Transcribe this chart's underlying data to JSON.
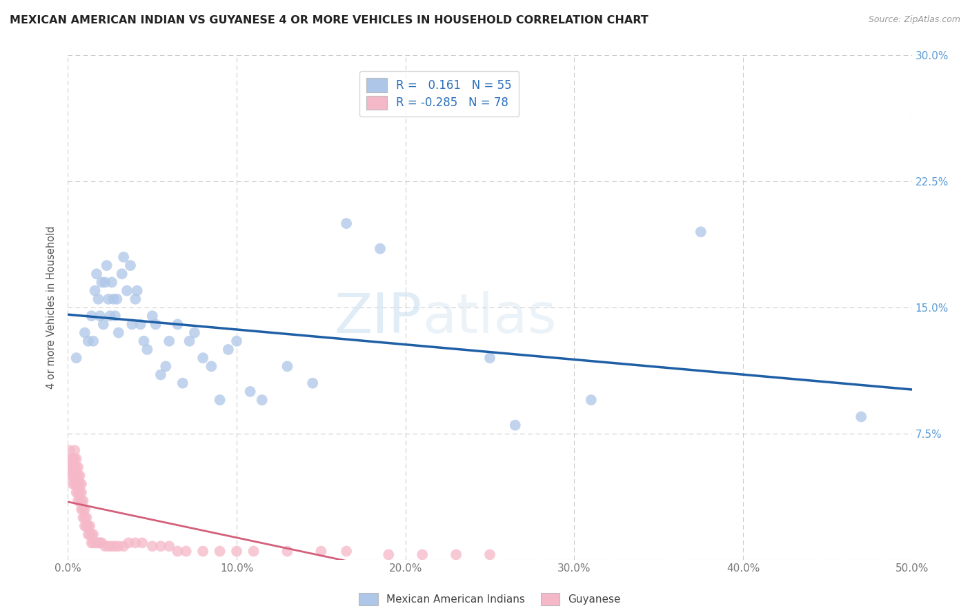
{
  "title": "MEXICAN AMERICAN INDIAN VS GUYANESE 4 OR MORE VEHICLES IN HOUSEHOLD CORRELATION CHART",
  "source": "Source: ZipAtlas.com",
  "ylabel": "4 or more Vehicles in Household",
  "x_min": 0.0,
  "x_max": 0.5,
  "y_min": 0.0,
  "y_max": 0.3,
  "x_ticks": [
    0.0,
    0.1,
    0.2,
    0.3,
    0.4,
    0.5
  ],
  "x_tick_labels": [
    "0.0%",
    "10.0%",
    "20.0%",
    "30.0%",
    "40.0%",
    "50.0%"
  ],
  "y_ticks": [
    0.0,
    0.075,
    0.15,
    0.225,
    0.3
  ],
  "y_tick_labels": [
    "",
    "7.5%",
    "15.0%",
    "22.5%",
    "30.0%"
  ],
  "blue_R": 0.161,
  "blue_N": 55,
  "pink_R": -0.285,
  "pink_N": 78,
  "blue_color": "#aec6e8",
  "pink_color": "#f5b8c8",
  "blue_line_color": "#1f5fa6",
  "pink_line_color": "#d45f7a",
  "legend_label_blue": "Mexican American Indians",
  "legend_label_pink": "Guyanese",
  "watermark_zip": "ZIP",
  "watermark_atlas": "atlas",
  "blue_x": [
    0.005,
    0.01,
    0.012,
    0.014,
    0.015,
    0.016,
    0.017,
    0.018,
    0.019,
    0.02,
    0.021,
    0.022,
    0.023,
    0.024,
    0.025,
    0.026,
    0.027,
    0.028,
    0.029,
    0.03,
    0.032,
    0.033,
    0.035,
    0.037,
    0.038,
    0.04,
    0.041,
    0.043,
    0.045,
    0.047,
    0.05,
    0.052,
    0.055,
    0.058,
    0.06,
    0.065,
    0.068,
    0.072,
    0.075,
    0.08,
    0.085,
    0.09,
    0.095,
    0.1,
    0.108,
    0.115,
    0.13,
    0.145,
    0.165,
    0.185,
    0.25,
    0.265,
    0.31,
    0.375,
    0.47
  ],
  "blue_y": [
    0.12,
    0.135,
    0.13,
    0.145,
    0.13,
    0.16,
    0.17,
    0.155,
    0.145,
    0.165,
    0.14,
    0.165,
    0.175,
    0.155,
    0.145,
    0.165,
    0.155,
    0.145,
    0.155,
    0.135,
    0.17,
    0.18,
    0.16,
    0.175,
    0.14,
    0.155,
    0.16,
    0.14,
    0.13,
    0.125,
    0.145,
    0.14,
    0.11,
    0.115,
    0.13,
    0.14,
    0.105,
    0.13,
    0.135,
    0.12,
    0.115,
    0.095,
    0.125,
    0.13,
    0.1,
    0.095,
    0.115,
    0.105,
    0.2,
    0.185,
    0.12,
    0.08,
    0.095,
    0.195,
    0.085
  ],
  "pink_x": [
    0.001,
    0.001,
    0.002,
    0.002,
    0.002,
    0.003,
    0.003,
    0.003,
    0.003,
    0.004,
    0.004,
    0.004,
    0.004,
    0.004,
    0.005,
    0.005,
    0.005,
    0.005,
    0.005,
    0.006,
    0.006,
    0.006,
    0.006,
    0.006,
    0.007,
    0.007,
    0.007,
    0.007,
    0.008,
    0.008,
    0.008,
    0.008,
    0.009,
    0.009,
    0.009,
    0.01,
    0.01,
    0.01,
    0.011,
    0.011,
    0.012,
    0.012,
    0.013,
    0.013,
    0.014,
    0.014,
    0.015,
    0.015,
    0.016,
    0.017,
    0.018,
    0.019,
    0.02,
    0.022,
    0.024,
    0.026,
    0.028,
    0.03,
    0.033,
    0.036,
    0.04,
    0.044,
    0.05,
    0.055,
    0.06,
    0.065,
    0.07,
    0.08,
    0.09,
    0.1,
    0.11,
    0.13,
    0.15,
    0.165,
    0.19,
    0.21,
    0.23,
    0.25
  ],
  "pink_y": [
    0.065,
    0.055,
    0.055,
    0.06,
    0.05,
    0.055,
    0.045,
    0.05,
    0.06,
    0.045,
    0.05,
    0.055,
    0.06,
    0.065,
    0.04,
    0.045,
    0.05,
    0.055,
    0.06,
    0.035,
    0.04,
    0.045,
    0.05,
    0.055,
    0.035,
    0.04,
    0.045,
    0.05,
    0.03,
    0.035,
    0.04,
    0.045,
    0.025,
    0.03,
    0.035,
    0.02,
    0.025,
    0.03,
    0.02,
    0.025,
    0.015,
    0.02,
    0.015,
    0.02,
    0.01,
    0.015,
    0.01,
    0.015,
    0.01,
    0.01,
    0.01,
    0.01,
    0.01,
    0.008,
    0.008,
    0.008,
    0.008,
    0.008,
    0.008,
    0.01,
    0.01,
    0.01,
    0.008,
    0.008,
    0.008,
    0.005,
    0.005,
    0.005,
    0.005,
    0.005,
    0.005,
    0.005,
    0.005,
    0.005,
    0.003,
    0.003,
    0.003,
    0.003
  ]
}
